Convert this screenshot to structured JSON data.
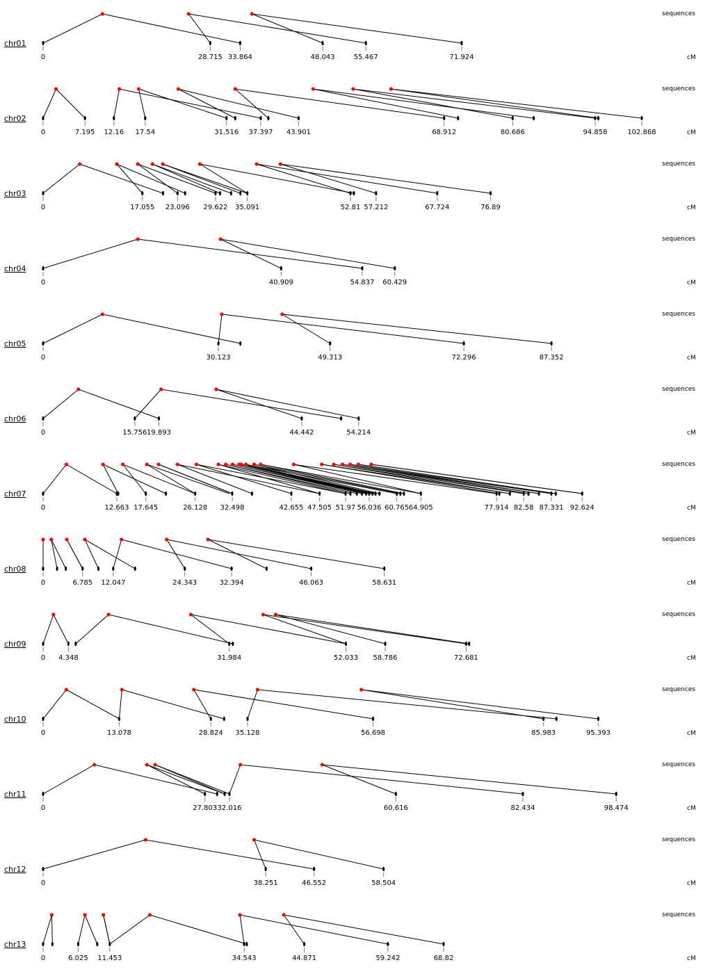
{
  "labels": {
    "top": "sequences",
    "bottom": "cM"
  },
  "colors": {
    "line": "#000000",
    "seq_dot": "#ff0000",
    "marker": "#000000"
  },
  "chromosomes": [
    {
      "name": "chr01",
      "labels": [
        "0",
        "28.715",
        "33.864",
        "48.043",
        "55.467",
        "71.924"
      ],
      "markers": [
        0,
        28.715,
        33.864,
        48.043,
        55.467,
        71.924
      ],
      "links": [
        [
          0,
          1.38
        ],
        [
          33.864,
          1.38
        ],
        [
          28.715,
          3.38
        ],
        [
          55.467,
          3.38
        ],
        [
          48.043,
          4.85
        ],
        [
          71.924,
          4.85
        ]
      ]
    },
    {
      "name": "chr02",
      "labels": [
        "0",
        "7.195",
        "12.16",
        "17.54",
        "31.516",
        "37.397",
        "43.901",
        "68.912",
        "80.686",
        "94.858",
        "102.868"
      ],
      "markers": [
        0,
        7.195,
        12.16,
        17.54,
        31.516,
        33.0,
        37.397,
        38.7,
        43.901,
        68.912,
        71.3,
        80.686,
        84.3,
        94.858,
        95.4,
        102.868
      ],
      "links": [
        [
          0,
          0.3
        ],
        [
          7.195,
          0.3
        ],
        [
          12.16,
          1.77
        ],
        [
          37.397,
          1.77
        ],
        [
          17.54,
          2.22
        ],
        [
          31.516,
          2.22
        ],
        [
          33.0,
          3.14
        ],
        [
          43.901,
          3.14
        ],
        [
          38.7,
          4.46
        ],
        [
          68.912,
          4.46
        ],
        [
          71.3,
          6.27
        ],
        [
          84.3,
          6.27
        ],
        [
          80.686,
          7.2
        ],
        [
          94.858,
          7.2
        ],
        [
          95.4,
          8.08
        ],
        [
          102.868,
          8.08
        ]
      ]
    },
    {
      "name": "chr03",
      "labels": [
        "0",
        "17.055",
        "23.096",
        "29.622",
        "35.091",
        "52.81",
        "57.212",
        "67.724",
        "76.89"
      ],
      "markers": [
        0,
        17.055,
        20.6,
        23.096,
        24.4,
        29.622,
        30.4,
        32.3,
        33.9,
        35.091,
        52.81,
        53.4,
        57.212,
        67.724,
        76.89
      ],
      "links": [
        [
          0,
          0.85
        ],
        [
          20.6,
          0.85
        ],
        [
          17.055,
          1.71
        ],
        [
          24.4,
          1.71
        ],
        [
          23.096,
          2.2
        ],
        [
          29.622,
          2.2
        ],
        [
          30.4,
          2.54
        ],
        [
          32.3,
          2.54
        ],
        [
          33.9,
          2.78
        ],
        [
          35.091,
          2.78
        ],
        [
          35.091,
          3.64
        ],
        [
          53.4,
          3.64
        ],
        [
          52.81,
          4.96
        ],
        [
          67.724,
          4.96
        ],
        [
          57.212,
          5.51
        ],
        [
          76.89,
          5.51
        ]
      ]
    },
    {
      "name": "chr04",
      "labels": [
        "0",
        "40.909",
        "54.837",
        "60.429"
      ],
      "markers": [
        0,
        40.909,
        54.837,
        60.429
      ],
      "links": [
        [
          0,
          2.2
        ],
        [
          54.837,
          2.2
        ],
        [
          40.909,
          4.12
        ],
        [
          60.429,
          4.12
        ]
      ]
    },
    {
      "name": "chr05",
      "labels": [
        "0",
        "30.123",
        "49.313",
        "72.296",
        "87.352"
      ],
      "markers": [
        0,
        30.123,
        33.9,
        49.313,
        72.296,
        87.352
      ],
      "links": [
        [
          0,
          1.38
        ],
        [
          33.9,
          1.38
        ],
        [
          30.123,
          4.15
        ],
        [
          72.296,
          4.15
        ],
        [
          49.313,
          5.55
        ],
        [
          87.352,
          5.55
        ]
      ]
    },
    {
      "name": "chr06",
      "labels": [
        "0",
        "15.756",
        "19.893",
        "44.442",
        "54.214"
      ],
      "markers": [
        0,
        15.756,
        19.893,
        44.442,
        51.2,
        54.214
      ],
      "links": [
        [
          0,
          0.82
        ],
        [
          19.893,
          0.82
        ],
        [
          15.756,
          2.74
        ],
        [
          51.2,
          2.74
        ],
        [
          44.442,
          4.02
        ],
        [
          54.214,
          4.02
        ]
      ]
    },
    {
      "name": "chr07",
      "labels": [
        "0",
        "12.663",
        "17.645",
        "26.128",
        "32.498",
        "42.655",
        "47.505",
        "51.97",
        "56.036",
        "60.765",
        "64.905",
        "77.914",
        "82.58",
        "87.331",
        "92.624"
      ],
      "markers": [
        0,
        12.663,
        12.9,
        17.645,
        21.1,
        26.128,
        32.498,
        35.9,
        42.655,
        47.505,
        51.97,
        52.8,
        53.9,
        54.8,
        55.5,
        56.036,
        56.6,
        57.1,
        57.8,
        60.765,
        61.4,
        62.0,
        64.905,
        77.914,
        78.4,
        80.2,
        82.58,
        83.4,
        85.2,
        87.331,
        88.1,
        92.624
      ],
      "links": [
        [
          0,
          0.54
        ],
        [
          12.663,
          0.54
        ],
        [
          12.9,
          1.39
        ],
        [
          21.1,
          1.39
        ],
        [
          17.645,
          1.85
        ],
        [
          26.128,
          1.85
        ],
        [
          26.128,
          2.41
        ],
        [
          32.0,
          2.41
        ],
        [
          32.498,
          2.68
        ],
        [
          32.498,
          2.68
        ],
        [
          35.9,
          3.12
        ],
        [
          47.505,
          3.12
        ],
        [
          42.655,
          3.56
        ],
        [
          51.97,
          3.56
        ],
        [
          47.505,
          4.07
        ],
        [
          51.97,
          4.07
        ],
        [
          52.8,
          4.24
        ],
        [
          53.9,
          4.24
        ],
        [
          54.8,
          4.4
        ],
        [
          55.5,
          4.4
        ],
        [
          55.5,
          4.55
        ],
        [
          56.036,
          4.55
        ],
        [
          56.6,
          4.6
        ],
        [
          57.1,
          4.6
        ],
        [
          57.1,
          4.71
        ],
        [
          60.765,
          4.71
        ],
        [
          57.8,
          4.9
        ],
        [
          61.4,
          4.9
        ],
        [
          62.0,
          5.05
        ],
        [
          64.905,
          5.05
        ],
        [
          64.905,
          5.82
        ],
        [
          77.914,
          5.82
        ],
        [
          78.4,
          6.47
        ],
        [
          80.2,
          6.47
        ],
        [
          80.2,
          6.75
        ],
        [
          82.58,
          6.75
        ],
        [
          83.4,
          6.95
        ],
        [
          85.2,
          6.95
        ],
        [
          85.2,
          7.13
        ],
        [
          87.331,
          7.13
        ],
        [
          88.1,
          7.32
        ],
        [
          88.1,
          7.32
        ],
        [
          92.624,
          7.62
        ],
        [
          92.624,
          7.62
        ]
      ]
    },
    {
      "name": "chr08",
      "labels": [
        "0",
        "6.785",
        "12.047",
        "24.343",
        "32.394",
        "46.063",
        "58.631"
      ],
      "markers": [
        0,
        2.4,
        3.9,
        6.785,
        9.5,
        12.047,
        15.8,
        24.343,
        32.394,
        38.4,
        46.063,
        58.631
      ],
      "links": [
        [
          0,
          0
        ],
        [
          0,
          0
        ],
        [
          2.4,
          0.19
        ],
        [
          3.9,
          0.19
        ],
        [
          6.785,
          0.55
        ],
        [
          6.785,
          0.55
        ],
        [
          9.5,
          0.97
        ],
        [
          15.8,
          0.97
        ],
        [
          12.047,
          1.82
        ],
        [
          32.394,
          1.82
        ],
        [
          24.343,
          2.87
        ],
        [
          46.063,
          2.87
        ],
        [
          38.4,
          3.83
        ],
        [
          58.631,
          3.83
        ]
      ]
    },
    {
      "name": "chr09",
      "labels": [
        "0",
        "4.348",
        "31.984",
        "52.033",
        "58.786",
        "72.681"
      ],
      "markers": [
        0,
        4.348,
        5.6,
        31.984,
        32.6,
        52.033,
        58.786,
        72.681,
        73.2
      ],
      "links": [
        [
          0,
          0.24
        ],
        [
          4.348,
          0.24
        ],
        [
          5.6,
          1.52
        ],
        [
          32.6,
          1.52
        ],
        [
          31.984,
          3.43
        ],
        [
          52.033,
          3.43
        ],
        [
          52.033,
          5.11
        ],
        [
          72.681,
          5.11
        ],
        [
          58.786,
          5.4
        ],
        [
          73.2,
          5.4
        ]
      ]
    },
    {
      "name": "chr10",
      "labels": [
        "0",
        "13.078",
        "28.824",
        "35.128",
        "56.698",
        "85.983",
        "95.393"
      ],
      "markers": [
        0,
        13.078,
        28.824,
        31.1,
        35.128,
        56.698,
        85.983,
        88.2,
        95.393
      ],
      "links": [
        [
          0,
          0.54
        ],
        [
          13.078,
          0.54
        ],
        [
          13.078,
          1.83
        ],
        [
          31.1,
          1.83
        ],
        [
          28.824,
          3.5
        ],
        [
          56.698,
          3.5
        ],
        [
          35.128,
          4.98
        ],
        [
          88.2,
          4.98
        ],
        [
          85.983,
          7.39
        ],
        [
          95.393,
          7.39
        ]
      ]
    },
    {
      "name": "chr11",
      "labels": [
        "0",
        "27.803",
        "32.016",
        "60.616",
        "82.434",
        "98.474"
      ],
      "markers": [
        0,
        27.803,
        29.9,
        31.2,
        32.016,
        60.616,
        82.434,
        98.474
      ],
      "links": [
        [
          0,
          1.19
        ],
        [
          29.9,
          1.19
        ],
        [
          27.803,
          2.41
        ],
        [
          31.2,
          2.41
        ],
        [
          31.2,
          2.6
        ],
        [
          32.016,
          2.6
        ],
        [
          32.016,
          4.58
        ],
        [
          82.434,
          4.58
        ],
        [
          60.616,
          6.48
        ],
        [
          98.474,
          6.48
        ]
      ]
    },
    {
      "name": "chr12",
      "labels": [
        "0",
        "38.251",
        "46.552",
        "58.504"
      ],
      "markers": [
        0,
        38.251,
        46.552,
        58.504
      ],
      "links": [
        [
          0,
          2.38
        ],
        [
          46.552,
          2.38
        ],
        [
          38.251,
          4.9
        ],
        [
          58.504,
          4.9
        ]
      ]
    },
    {
      "name": "chr13",
      "labels": [
        "0",
        "6.025",
        "11.453",
        "34.543",
        "44.871",
        "59.242",
        "68.82"
      ],
      "markers": [
        0,
        1.6,
        6.025,
        9.3,
        11.453,
        34.543,
        35.0,
        44.871,
        59.242,
        68.82
      ],
      "links": [
        [
          0,
          0.2
        ],
        [
          1.6,
          0.2
        ],
        [
          6.025,
          0.97
        ],
        [
          9.3,
          0.97
        ],
        [
          11.453,
          1.4
        ],
        [
          11.453,
          1.4
        ],
        [
          11.453,
          2.48
        ],
        [
          35.0,
          2.48
        ],
        [
          34.543,
          4.57
        ],
        [
          59.242,
          4.57
        ],
        [
          44.871,
          5.59
        ],
        [
          68.82,
          5.59
        ]
      ]
    }
  ]
}
